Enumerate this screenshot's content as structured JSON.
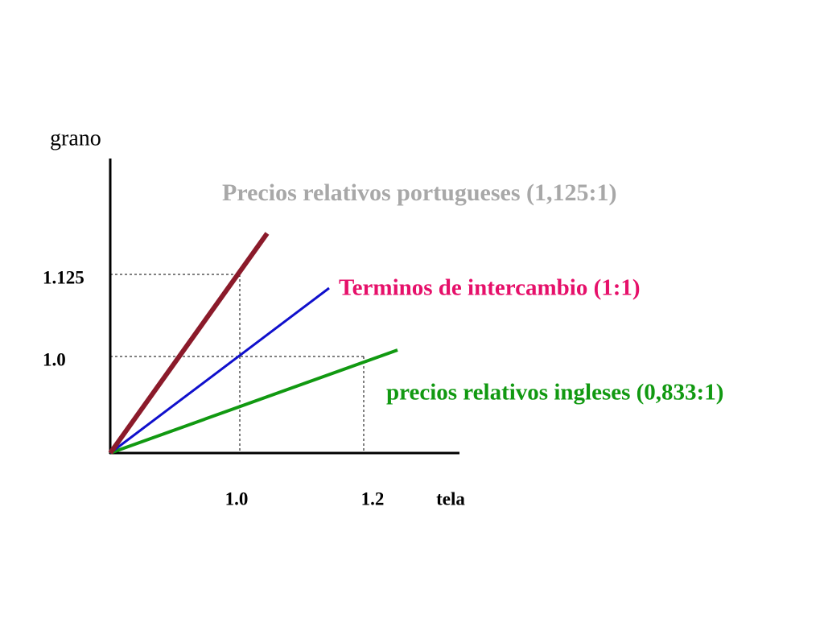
{
  "axes": {
    "y_label": "grano",
    "x_label": "tela",
    "y_ticks": [
      "1.125",
      "1.0"
    ],
    "x_ticks": [
      "1.0",
      "1.2"
    ]
  },
  "labels": {
    "portuguese": "Precios relativos portugueses (1,125:1)",
    "terms_of_trade": "Terminos de intercambio (1:1)",
    "english": "precios relativos ingleses (0,833:1)"
  }
}
